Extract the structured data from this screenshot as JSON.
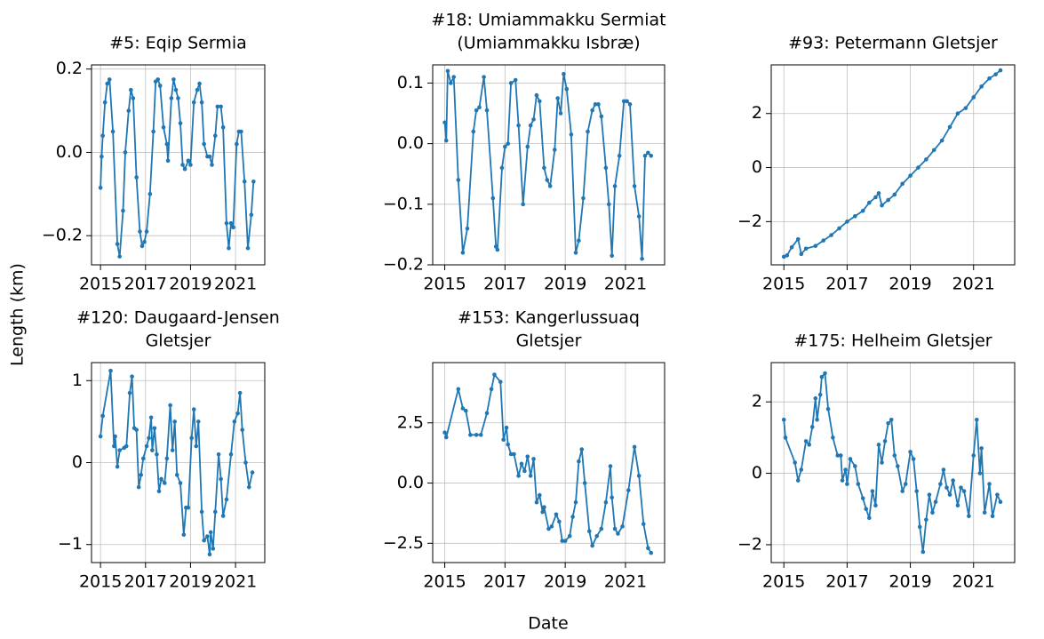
{
  "y_label": "Length (km)",
  "x_label": "Date",
  "chart_data": [
    {
      "type": "line",
      "title": [
        "#5: Eqip Sermia"
      ],
      "color": "#1f77b4",
      "grid": true,
      "xlim": [
        2014.6,
        2022.3
      ],
      "xticks": [
        2015,
        2017,
        2019,
        2021
      ],
      "ylim": [
        -0.27,
        0.21
      ],
      "yticks": [
        {
          "value": -0.2,
          "label": "−0.2"
        },
        {
          "value": 0,
          "label": "0.0"
        },
        {
          "value": 0.2,
          "label": "0.2"
        }
      ],
      "x": [
        2015.0,
        2015.05,
        2015.1,
        2015.2,
        2015.3,
        2015.4,
        2015.55,
        2015.75,
        2015.85,
        2016.0,
        2016.1,
        2016.25,
        2016.35,
        2016.45,
        2016.6,
        2016.75,
        2016.85,
        2016.95,
        2017.05,
        2017.2,
        2017.35,
        2017.45,
        2017.55,
        2017.65,
        2017.8,
        2017.95,
        2018.0,
        2018.15,
        2018.25,
        2018.35,
        2018.45,
        2018.55,
        2018.65,
        2018.75,
        2018.9,
        2019.0,
        2019.15,
        2019.3,
        2019.4,
        2019.5,
        2019.6,
        2019.75,
        2019.85,
        2019.95,
        2020.1,
        2020.2,
        2020.35,
        2020.45,
        2020.6,
        2020.7,
        2020.8,
        2020.9,
        2021.05,
        2021.15,
        2021.25,
        2021.4,
        2021.55,
        2021.7,
        2021.8
      ],
      "values": [
        -0.085,
        -0.01,
        0.04,
        0.12,
        0.165,
        0.175,
        0.05,
        -0.22,
        -0.25,
        -0.14,
        0.0,
        0.1,
        0.15,
        0.13,
        -0.06,
        -0.19,
        -0.225,
        -0.215,
        -0.19,
        -0.1,
        0.05,
        0.17,
        0.175,
        0.16,
        0.06,
        0.02,
        -0.02,
        0.13,
        0.175,
        0.15,
        0.13,
        0.07,
        -0.03,
        -0.04,
        -0.02,
        -0.03,
        0.12,
        0.15,
        0.165,
        0.12,
        0.02,
        -0.01,
        -0.01,
        -0.03,
        0.04,
        0.11,
        0.11,
        0.06,
        -0.17,
        -0.23,
        -0.17,
        -0.18,
        0.02,
        0.05,
        0.05,
        -0.07,
        -0.23,
        -0.15,
        -0.07
      ]
    },
    {
      "type": "line",
      "title": [
        "#18: Umiammakku Sermiat",
        "(Umiammakku Isbræ)"
      ],
      "color": "#1f77b4",
      "grid": true,
      "xlim": [
        2014.6,
        2022.3
      ],
      "xticks": [
        2015,
        2017,
        2019,
        2021
      ],
      "ylim": [
        -0.2,
        0.13
      ],
      "yticks": [
        {
          "value": -0.2,
          "label": "−0.2"
        },
        {
          "value": -0.1,
          "label": "−0.1"
        },
        {
          "value": 0,
          "label": "0.0"
        },
        {
          "value": 0.1,
          "label": "0.1"
        }
      ],
      "x": [
        2015.0,
        2015.05,
        2015.1,
        2015.2,
        2015.3,
        2015.45,
        2015.6,
        2015.75,
        2015.95,
        2016.05,
        2016.15,
        2016.3,
        2016.4,
        2016.6,
        2016.7,
        2016.75,
        2016.9,
        2017.0,
        2017.1,
        2017.2,
        2017.35,
        2017.45,
        2017.6,
        2017.75,
        2017.85,
        2017.95,
        2018.05,
        2018.15,
        2018.3,
        2018.4,
        2018.5,
        2018.65,
        2018.75,
        2018.85,
        2018.95,
        2019.05,
        2019.2,
        2019.35,
        2019.45,
        2019.6,
        2019.75,
        2019.9,
        2020.0,
        2020.1,
        2020.2,
        2020.35,
        2020.45,
        2020.55,
        2020.65,
        2020.8,
        2020.95,
        2021.05,
        2021.15,
        2021.3,
        2021.45,
        2021.55,
        2021.65,
        2021.75,
        2021.85
      ],
      "values": [
        0.035,
        0.005,
        0.12,
        0.1,
        0.11,
        -0.06,
        -0.18,
        -0.14,
        0.02,
        0.055,
        0.06,
        0.11,
        0.055,
        -0.09,
        -0.17,
        -0.175,
        -0.04,
        -0.005,
        0.0,
        0.1,
        0.105,
        0.03,
        -0.1,
        -0.005,
        0.03,
        0.04,
        0.08,
        0.07,
        -0.04,
        -0.06,
        -0.07,
        -0.01,
        0.075,
        0.05,
        0.115,
        0.09,
        0.015,
        -0.18,
        -0.16,
        -0.09,
        0.02,
        0.055,
        0.065,
        0.065,
        0.045,
        -0.04,
        -0.1,
        -0.185,
        -0.07,
        -0.02,
        0.07,
        0.07,
        0.065,
        -0.07,
        -0.12,
        -0.19,
        -0.02,
        -0.015,
        -0.02
      ]
    },
    {
      "type": "line",
      "title": [
        "#93: Petermann Gletsjer"
      ],
      "color": "#1f77b4",
      "grid": true,
      "xlim": [
        2014.6,
        2022.3
      ],
      "xticks": [
        2015,
        2017,
        2019,
        2021
      ],
      "ylim": [
        -3.6,
        3.8
      ],
      "yticks": [
        {
          "value": -2,
          "label": "−2"
        },
        0,
        2
      ],
      "x": [
        2015.0,
        2015.1,
        2015.25,
        2015.45,
        2015.55,
        2015.7,
        2016.0,
        2016.25,
        2016.5,
        2016.75,
        2017.0,
        2017.25,
        2017.5,
        2017.7,
        2017.9,
        2018.0,
        2018.1,
        2018.3,
        2018.5,
        2018.75,
        2019.0,
        2019.25,
        2019.5,
        2019.75,
        2020.0,
        2020.25,
        2020.5,
        2020.75,
        2021.0,
        2021.25,
        2021.5,
        2021.7,
        2021.85
      ],
      "values": [
        -3.3,
        -3.25,
        -2.95,
        -2.65,
        -3.2,
        -3.0,
        -2.9,
        -2.7,
        -2.5,
        -2.25,
        -2.0,
        -1.8,
        -1.6,
        -1.3,
        -1.1,
        -0.95,
        -1.4,
        -1.2,
        -1.0,
        -0.6,
        -0.3,
        0.0,
        0.3,
        0.65,
        1.0,
        1.5,
        2.0,
        2.2,
        2.6,
        3.0,
        3.3,
        3.45,
        3.6
      ]
    },
    {
      "type": "line",
      "title": [
        "#120: Daugaard-Jensen",
        "Gletsjer"
      ],
      "color": "#1f77b4",
      "grid": true,
      "xlim": [
        2014.6,
        2022.3
      ],
      "xticks": [
        2015,
        2017,
        2019,
        2021
      ],
      "ylim": [
        -1.22,
        1.22
      ],
      "yticks": [
        {
          "value": -1,
          "label": "−1"
        },
        0,
        1
      ],
      "x": [
        2015.0,
        2015.1,
        2015.45,
        2015.6,
        2015.65,
        2015.75,
        2015.85,
        2016.05,
        2016.15,
        2016.3,
        2016.4,
        2016.5,
        2016.6,
        2016.7,
        2016.8,
        2016.9,
        2017.05,
        2017.15,
        2017.25,
        2017.3,
        2017.4,
        2017.5,
        2017.6,
        2017.7,
        2017.85,
        2017.95,
        2018.1,
        2018.2,
        2018.3,
        2018.4,
        2018.55,
        2018.7,
        2018.8,
        2018.9,
        2019.05,
        2019.15,
        2019.25,
        2019.35,
        2019.5,
        2019.6,
        2019.75,
        2019.85,
        2019.9,
        2020.0,
        2020.1,
        2020.25,
        2020.35,
        2020.45,
        2020.6,
        2020.8,
        2020.95,
        2021.1,
        2021.2,
        2021.3,
        2021.45,
        2021.6,
        2021.75
      ],
      "values": [
        0.32,
        0.57,
        1.12,
        0.2,
        0.32,
        -0.05,
        0.15,
        0.18,
        0.2,
        0.85,
        1.05,
        0.42,
        0.4,
        -0.3,
        -0.15,
        0.05,
        0.2,
        0.3,
        0.55,
        0.15,
        0.42,
        0.1,
        -0.35,
        -0.2,
        -0.25,
        0.05,
        0.7,
        0.15,
        0.5,
        -0.15,
        -0.25,
        -0.88,
        -0.55,
        -0.55,
        0.3,
        0.65,
        0.2,
        0.5,
        -0.6,
        -0.95,
        -0.9,
        -1.12,
        -0.85,
        -1.05,
        -0.6,
        0.1,
        -0.2,
        -0.65,
        -0.45,
        0.1,
        0.5,
        0.6,
        0.85,
        0.4,
        0.0,
        -0.3,
        -0.12
      ]
    },
    {
      "type": "line",
      "title": [
        "#153: Kangerlussuaq",
        "Gletsjer"
      ],
      "color": "#1f77b4",
      "grid": true,
      "xlim": [
        2014.6,
        2022.3
      ],
      "xticks": [
        2015,
        2017,
        2019,
        2021
      ],
      "ylim": [
        -3.3,
        5.0
      ],
      "yticks": [
        {
          "value": -2.5,
          "label": "−2.5"
        },
        {
          "value": 0,
          "label": "0.0"
        },
        2.5
      ],
      "x": [
        2015.0,
        2015.05,
        2015.45,
        2015.6,
        2015.7,
        2015.85,
        2016.05,
        2016.2,
        2016.4,
        2016.55,
        2016.65,
        2016.85,
        2016.95,
        2017.05,
        2017.1,
        2017.2,
        2017.3,
        2017.45,
        2017.55,
        2017.65,
        2017.75,
        2017.85,
        2017.95,
        2018.05,
        2018.15,
        2018.25,
        2018.3,
        2018.45,
        2018.55,
        2018.7,
        2018.8,
        2018.9,
        2019.0,
        2019.15,
        2019.25,
        2019.35,
        2019.45,
        2019.55,
        2019.65,
        2019.8,
        2019.9,
        2020.05,
        2020.2,
        2020.35,
        2020.5,
        2020.55,
        2020.65,
        2020.75,
        2020.9,
        2021.1,
        2021.3,
        2021.45,
        2021.6,
        2021.75,
        2021.85
      ],
      "values": [
        2.1,
        1.9,
        3.9,
        3.1,
        3.0,
        2.0,
        2.0,
        2.0,
        2.9,
        3.9,
        4.5,
        4.2,
        1.8,
        2.3,
        1.6,
        1.2,
        1.2,
        0.3,
        0.8,
        0.5,
        1.1,
        0.3,
        1.0,
        -0.8,
        -0.5,
        -1.2,
        -1.0,
        -1.9,
        -1.8,
        -1.3,
        -1.6,
        -2.4,
        -2.4,
        -2.2,
        -1.4,
        -0.8,
        0.9,
        1.4,
        0.0,
        -2.0,
        -2.6,
        -2.2,
        -1.9,
        -0.8,
        0.7,
        -0.6,
        -1.9,
        -2.1,
        -1.8,
        -0.3,
        1.5,
        0.3,
        -1.7,
        -2.7,
        -2.9
      ]
    },
    {
      "type": "line",
      "title": [
        "#175: Helheim Gletsjer"
      ],
      "color": "#1f77b4",
      "grid": true,
      "xlim": [
        2014.6,
        2022.3
      ],
      "xticks": [
        2015,
        2017,
        2019,
        2021
      ],
      "ylim": [
        -2.5,
        3.1
      ],
      "yticks": [
        {
          "value": -2,
          "label": "−2"
        },
        0,
        2
      ],
      "x": [
        2015.0,
        2015.05,
        2015.35,
        2015.45,
        2015.55,
        2015.7,
        2015.8,
        2015.9,
        2016.0,
        2016.05,
        2016.15,
        2016.2,
        2016.3,
        2016.4,
        2016.55,
        2016.7,
        2016.8,
        2016.85,
        2016.95,
        2017.0,
        2017.1,
        2017.25,
        2017.35,
        2017.5,
        2017.6,
        2017.7,
        2017.8,
        2017.9,
        2018.0,
        2018.1,
        2018.2,
        2018.3,
        2018.4,
        2018.5,
        2018.6,
        2018.75,
        2018.85,
        2019.0,
        2019.1,
        2019.2,
        2019.3,
        2019.4,
        2019.5,
        2019.6,
        2019.7,
        2019.8,
        2019.95,
        2020.05,
        2020.15,
        2020.25,
        2020.35,
        2020.5,
        2020.6,
        2020.7,
        2020.85,
        2021.0,
        2021.1,
        2021.2,
        2021.25,
        2021.35,
        2021.5,
        2021.6,
        2021.75,
        2021.85
      ],
      "values": [
        1.5,
        1.0,
        0.3,
        -0.2,
        0.1,
        0.9,
        0.8,
        1.3,
        2.1,
        1.5,
        2.2,
        2.7,
        2.8,
        1.8,
        1.0,
        0.5,
        0.5,
        -0.2,
        0.1,
        -0.3,
        0.4,
        0.2,
        -0.3,
        -0.7,
        -1.0,
        -1.25,
        -0.5,
        -0.9,
        0.8,
        0.3,
        0.9,
        1.4,
        1.5,
        0.5,
        0.2,
        -0.5,
        -0.3,
        0.6,
        0.4,
        -0.5,
        -1.5,
        -2.2,
        -1.3,
        -0.6,
        -1.1,
        -0.8,
        -0.3,
        0.1,
        -0.4,
        -0.6,
        -0.2,
        -0.9,
        -0.4,
        -0.5,
        -1.2,
        0.5,
        1.5,
        0.0,
        0.7,
        -1.1,
        -0.3,
        -1.2,
        -0.6,
        -0.8
      ]
    }
  ]
}
